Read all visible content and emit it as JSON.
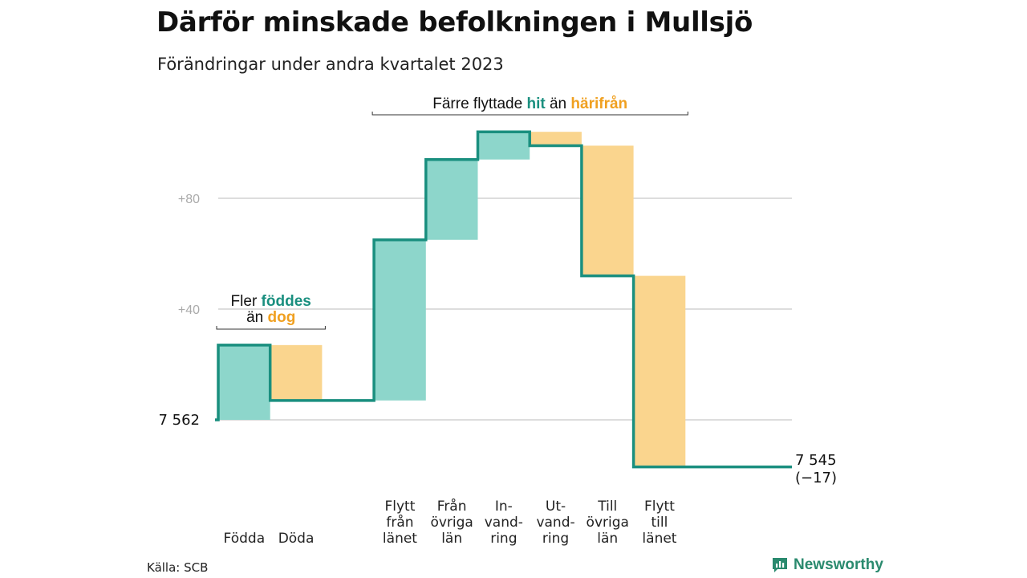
{
  "title": "Därför minskade befolkningen i Mullsjö",
  "subtitle": "Förändringar under andra kvartalet 2023",
  "source": "Källa: SCB",
  "brand": {
    "name": "Newsworthy",
    "icon": "bar-chart-icon"
  },
  "colors": {
    "increase": "#8dd6cb",
    "decrease": "#fad58e",
    "line": "#1a8f7f",
    "grid": "#dddddd",
    "tick": "#aaaaaa",
    "accent_in": "#1a8f7f",
    "accent_out": "#f0a020"
  },
  "chart_data": {
    "type": "waterfall",
    "start_value": 7562,
    "start_label": "7 562",
    "end_value": 7545,
    "end_label": "7 545",
    "end_change_label": "(−17)",
    "ylim": [
      -17,
      105
    ],
    "y_ticks": [
      {
        "value": 40,
        "label": "+40"
      },
      {
        "value": 80,
        "label": "+80"
      }
    ],
    "grid_values": [
      0,
      40,
      80
    ],
    "steps": [
      {
        "label_lines": [
          "Födda"
        ],
        "change": 27,
        "kind": "in"
      },
      {
        "label_lines": [
          "Döda"
        ],
        "change": -20,
        "kind": "out"
      },
      {
        "label_lines": [],
        "change": 0,
        "kind": "gap"
      },
      {
        "label_lines": [
          "Flytt",
          "från",
          "länet"
        ],
        "change": 58,
        "kind": "in"
      },
      {
        "label_lines": [
          "Från",
          "övriga",
          "län"
        ],
        "change": 29,
        "kind": "in"
      },
      {
        "label_lines": [
          "In-",
          "vand-",
          "ring"
        ],
        "change": 10,
        "kind": "in"
      },
      {
        "label_lines": [
          "Ut-",
          "vand-",
          "ring"
        ],
        "change": -5,
        "kind": "out"
      },
      {
        "label_lines": [
          "Till",
          "övriga",
          "län"
        ],
        "change": -47,
        "kind": "out"
      },
      {
        "label_lines": [
          "Flytt",
          "till",
          "länet"
        ],
        "change": -69,
        "kind": "out"
      }
    ],
    "annotations": [
      {
        "parts": [
          {
            "text": "Fler ",
            "style": "plain"
          },
          {
            "text": "föddes",
            "style": "in"
          }
        ],
        "parts2": [
          {
            "text": "än ",
            "style": "plain"
          },
          {
            "text": "dog",
            "style": "out"
          }
        ],
        "span": [
          0,
          1
        ]
      },
      {
        "parts": [
          {
            "text": "Färre flyttade ",
            "style": "plain"
          },
          {
            "text": "hit",
            "style": "in"
          },
          {
            "text": " än ",
            "style": "plain"
          },
          {
            "text": "härifrån",
            "style": "out"
          }
        ],
        "span": [
          3,
          8
        ]
      }
    ]
  }
}
